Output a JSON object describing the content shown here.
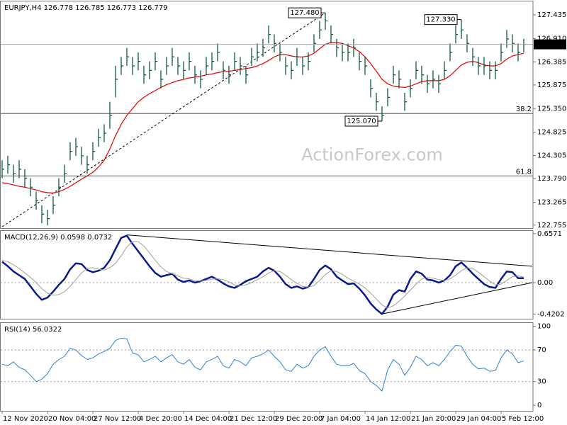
{
  "chart_data": [
    {
      "type": "ohlc",
      "title": "EURJPY,H4  126.778 126.785 126.773 126.779",
      "color": "#0d5a3a",
      "watermark": "ActionForex.com",
      "ylim": [
        122.69,
        127.75
      ],
      "yticks": [
        127.435,
        {
          "value": 126.91,
          "label": "126.910"
        },
        126.385,
        125.875,
        {
          "value": 125.35,
          "label": "125.350"
        },
        124.825,
        124.305,
        {
          "value": 123.79,
          "label": "123.790"
        },
        123.265,
        122.755
      ],
      "close": [
        124.0,
        124.1,
        123.9,
        124.0,
        123.8,
        123.6,
        123.3,
        123.0,
        122.9,
        123.2,
        123.6,
        123.9,
        124.4,
        124.5,
        124.3,
        124.1,
        124.4,
        124.7,
        124.8,
        125.2,
        126.0,
        126.3,
        126.5,
        126.3,
        126.4,
        126.1,
        126.2,
        126.4,
        126.0,
        126.3,
        126.5,
        126.3,
        126.2,
        126.4,
        126.1,
        126.0,
        126.3,
        126.4,
        126.6,
        126.2,
        126.1,
        126.4,
        126.3,
        126.1,
        126.5,
        126.6,
        126.7,
        127.0,
        126.8,
        126.6,
        126.3,
        126.2,
        126.5,
        126.3,
        126.4,
        126.8,
        127.1,
        127.3,
        127.0,
        126.7,
        126.6,
        126.6,
        126.7,
        126.4,
        126.3,
        125.8,
        125.5,
        125.2,
        125.6,
        126.1,
        126.0,
        125.5,
        125.8,
        126.2,
        126.1,
        125.9,
        126.0,
        125.9,
        126.2,
        126.6,
        127.0,
        127.1,
        126.8,
        126.5,
        126.3,
        126.3,
        126.2,
        126.2,
        126.6,
        126.9,
        126.8,
        126.6,
        126.779
      ],
      "high": [
        124.2,
        124.3,
        124.1,
        124.2,
        124.0,
        123.8,
        123.5,
        123.2,
        123.1,
        123.4,
        123.8,
        124.1,
        124.6,
        124.7,
        124.5,
        124.3,
        124.6,
        124.9,
        125.0,
        125.5,
        126.3,
        126.5,
        126.7,
        126.5,
        126.6,
        126.3,
        126.4,
        126.6,
        126.2,
        126.5,
        126.7,
        126.5,
        126.4,
        126.6,
        126.3,
        126.2,
        126.5,
        126.6,
        126.8,
        126.4,
        126.3,
        126.6,
        126.5,
        126.3,
        126.7,
        126.8,
        126.9,
        127.2,
        127.0,
        126.8,
        126.5,
        126.4,
        126.7,
        126.5,
        126.6,
        127.0,
        127.3,
        127.48,
        127.2,
        126.9,
        126.8,
        126.8,
        126.9,
        126.6,
        126.5,
        126.0,
        125.7,
        125.4,
        125.8,
        126.3,
        126.2,
        125.7,
        126.0,
        126.4,
        126.3,
        126.1,
        126.2,
        126.1,
        126.4,
        126.8,
        127.2,
        127.33,
        127.0,
        126.7,
        126.5,
        126.5,
        126.4,
        126.4,
        126.8,
        127.1,
        127.0,
        126.8,
        126.9
      ],
      "low": [
        123.8,
        123.9,
        123.7,
        123.8,
        123.6,
        123.4,
        123.1,
        122.8,
        122.75,
        123.0,
        123.4,
        123.7,
        124.2,
        124.3,
        124.1,
        123.9,
        124.2,
        124.5,
        124.6,
        124.9,
        125.6,
        126.1,
        126.3,
        126.1,
        126.2,
        125.9,
        126.0,
        126.2,
        125.8,
        126.1,
        126.3,
        126.1,
        126.0,
        126.2,
        125.9,
        125.8,
        126.1,
        126.2,
        126.4,
        126.0,
        125.9,
        126.2,
        126.1,
        125.9,
        126.3,
        126.4,
        126.5,
        126.8,
        126.6,
        126.4,
        126.1,
        126.0,
        126.3,
        126.1,
        126.2,
        126.6,
        126.9,
        127.1,
        126.8,
        126.5,
        126.4,
        126.4,
        126.5,
        126.2,
        126.1,
        125.6,
        125.3,
        125.07,
        125.4,
        125.9,
        125.8,
        125.3,
        125.6,
        126.0,
        125.9,
        125.7,
        125.8,
        125.7,
        126.0,
        126.4,
        126.8,
        126.9,
        126.6,
        126.3,
        126.1,
        126.1,
        126.0,
        126.0,
        126.4,
        126.7,
        126.6,
        126.4,
        126.6
      ],
      "overlays": [
        {
          "color": "#e00000",
          "values": [
            123.7,
            123.68,
            123.65,
            123.62,
            123.6,
            123.57,
            123.54,
            123.5,
            123.48,
            123.47,
            123.5,
            123.55,
            123.62,
            123.7,
            123.78,
            123.85,
            123.93,
            124.05,
            124.2,
            124.45,
            124.75,
            125.0,
            125.2,
            125.35,
            125.5,
            125.6,
            125.68,
            125.75,
            125.82,
            125.88,
            125.93,
            125.97,
            126.0,
            126.03,
            126.05,
            126.07,
            126.1,
            126.12,
            126.15,
            126.17,
            126.18,
            126.2,
            126.22,
            126.24,
            126.26,
            126.3,
            126.35,
            126.42,
            126.5,
            126.55,
            126.55,
            126.52,
            126.5,
            126.5,
            126.52,
            126.58,
            126.68,
            126.78,
            126.82,
            126.82,
            126.8,
            126.75,
            126.7,
            126.62,
            126.5,
            126.35,
            126.18,
            126.0,
            125.9,
            125.85,
            125.83,
            125.82,
            125.85,
            125.9,
            125.95,
            125.97,
            125.97,
            125.97,
            126.0,
            126.08,
            126.2,
            126.32,
            126.38,
            126.4,
            126.37,
            126.32,
            126.3,
            126.3,
            126.35,
            126.45,
            126.52,
            126.55,
            126.58
          ]
        }
      ],
      "levels": [
        {
          "value": 125.24,
          "label": "38.2"
        },
        {
          "value": 123.85,
          "label": "61.8"
        }
      ],
      "annotations": [
        {
          "text": "127.480",
          "value": 127.48
        },
        {
          "text": "125.070",
          "value": 125.07
        },
        {
          "text": "127.330",
          "value": 127.33
        }
      ],
      "trendlines": [
        {
          "x": [
            0,
            57
          ],
          "y": [
            122.72,
            127.48
          ],
          "dashed": true
        }
      ]
    },
    {
      "type": "line",
      "title": "MACD(12,26,9) 0.0598 0.0732",
      "ylim": [
        -0.484,
        0.703
      ],
      "yticks": [
        0.6571,
        {
          "value": 0,
          "label": "0.00"
        },
        -0.4202
      ],
      "levels": [
        0
      ],
      "series": [
        {
          "color": "#0a1a8c",
          "width": 2.5,
          "values": [
            0.28,
            0.22,
            0.15,
            0.1,
            0.05,
            -0.05,
            -0.15,
            -0.23,
            -0.2,
            -0.12,
            -0.03,
            0.05,
            0.18,
            0.26,
            0.25,
            0.17,
            0.14,
            0.16,
            0.2,
            0.3,
            0.45,
            0.6,
            0.63,
            0.52,
            0.42,
            0.32,
            0.22,
            0.13,
            0.08,
            0.1,
            0.12,
            0.04,
            0.01,
            0.03,
            0.0,
            0.02,
            0.05,
            0.08,
            0.04,
            -0.01,
            -0.05,
            -0.07,
            -0.03,
            0.02,
            0.05,
            0.08,
            0.15,
            0.2,
            0.16,
            0.08,
            -0.02,
            -0.07,
            -0.05,
            -0.08,
            -0.06,
            0.05,
            0.17,
            0.23,
            0.18,
            0.08,
            0.03,
            -0.02,
            -0.01,
            -0.08,
            -0.17,
            -0.28,
            -0.36,
            -0.42,
            -0.32,
            -0.16,
            -0.1,
            -0.12,
            0.05,
            0.15,
            0.12,
            0.04,
            0.03,
            0.0,
            0.03,
            0.1,
            0.22,
            0.27,
            0.2,
            0.12,
            0.05,
            -0.02,
            -0.06,
            -0.07,
            0.05,
            0.15,
            0.14,
            0.06,
            0.0598
          ]
        },
        {
          "color": "#a0a0a0",
          "width": 1,
          "values": [
            0.3,
            0.28,
            0.24,
            0.19,
            0.13,
            0.07,
            0.0,
            -0.08,
            -0.14,
            -0.17,
            -0.16,
            -0.12,
            -0.05,
            0.04,
            0.13,
            0.19,
            0.2,
            0.18,
            0.17,
            0.2,
            0.26,
            0.36,
            0.48,
            0.55,
            0.55,
            0.49,
            0.4,
            0.3,
            0.21,
            0.15,
            0.12,
            0.09,
            0.06,
            0.05,
            0.03,
            0.02,
            0.03,
            0.05,
            0.05,
            0.04,
            0.01,
            -0.03,
            -0.04,
            -0.03,
            0.0,
            0.04,
            0.08,
            0.13,
            0.16,
            0.15,
            0.1,
            0.04,
            -0.01,
            -0.05,
            -0.06,
            -0.04,
            0.03,
            0.11,
            0.16,
            0.15,
            0.11,
            0.06,
            0.02,
            -0.02,
            -0.07,
            -0.14,
            -0.22,
            -0.3,
            -0.34,
            -0.31,
            -0.25,
            -0.18,
            -0.1,
            -0.02,
            0.05,
            0.07,
            0.06,
            0.04,
            0.03,
            0.05,
            0.1,
            0.16,
            0.2,
            0.19,
            0.14,
            0.08,
            0.02,
            -0.03,
            -0.02,
            0.03,
            0.08,
            0.09,
            0.0732
          ]
        }
      ],
      "trendlines": [
        {
          "x": [
            22,
            93.5
          ],
          "y": [
            0.64,
            0.22
          ]
        },
        {
          "x": [
            67,
            93.5
          ],
          "y": [
            -0.42,
            0.0
          ]
        }
      ]
    },
    {
      "type": "line",
      "title": "RSI(14) 56.0322",
      "ylim": [
        -7,
        105
      ],
      "yticks": [
        100,
        70,
        30,
        0
      ],
      "levels": [
        70,
        30
      ],
      "series": [
        {
          "color": "#2f7fd6",
          "width": 1,
          "values": [
            52,
            50,
            55,
            48,
            45,
            38,
            30,
            33,
            40,
            52,
            58,
            62,
            72,
            70,
            63,
            58,
            60,
            65,
            68,
            72,
            82,
            85,
            84,
            66,
            64,
            55,
            58,
            62,
            55,
            60,
            64,
            55,
            52,
            58,
            48,
            45,
            55,
            58,
            62,
            50,
            47,
            58,
            55,
            50,
            60,
            62,
            65,
            70,
            62,
            55,
            45,
            43,
            52,
            47,
            50,
            62,
            70,
            74,
            62,
            52,
            50,
            50,
            53,
            44,
            40,
            30,
            25,
            18,
            45,
            58,
            52,
            38,
            48,
            62,
            58,
            50,
            54,
            50,
            58,
            68,
            76,
            75,
            62,
            52,
            46,
            47,
            43,
            44,
            60,
            70,
            65,
            54,
            56.0322
          ]
        }
      ],
      "categories": [
        "12 Nov 2020",
        null,
        null,
        null,
        null,
        null,
        null,
        null,
        "20 Nov 04:00",
        null,
        null,
        null,
        null,
        null,
        null,
        null,
        "27 Nov 12:00",
        null,
        null,
        null,
        null,
        null,
        null,
        null,
        "4 Dec 20:00",
        null,
        null,
        null,
        null,
        null,
        null,
        null,
        "14 Dec 04:00",
        null,
        null,
        null,
        null,
        null,
        null,
        null,
        "21 Dec 12:00",
        null,
        null,
        null,
        null,
        null,
        null,
        null,
        "29 Dec 20:00",
        null,
        null,
        null,
        null,
        null,
        null,
        null,
        "7 Jan 04:00",
        null,
        null,
        null,
        null,
        null,
        null,
        null,
        "14 Jan 12:00",
        null,
        null,
        null,
        null,
        null,
        null,
        null,
        "21 Jan 20:00",
        null,
        null,
        null,
        null,
        null,
        null,
        null,
        "29 Jan 04:00",
        null,
        null,
        null,
        null,
        null,
        null,
        null,
        "5 Feb 12:00",
        null,
        null,
        null,
        null
      ]
    }
  ]
}
